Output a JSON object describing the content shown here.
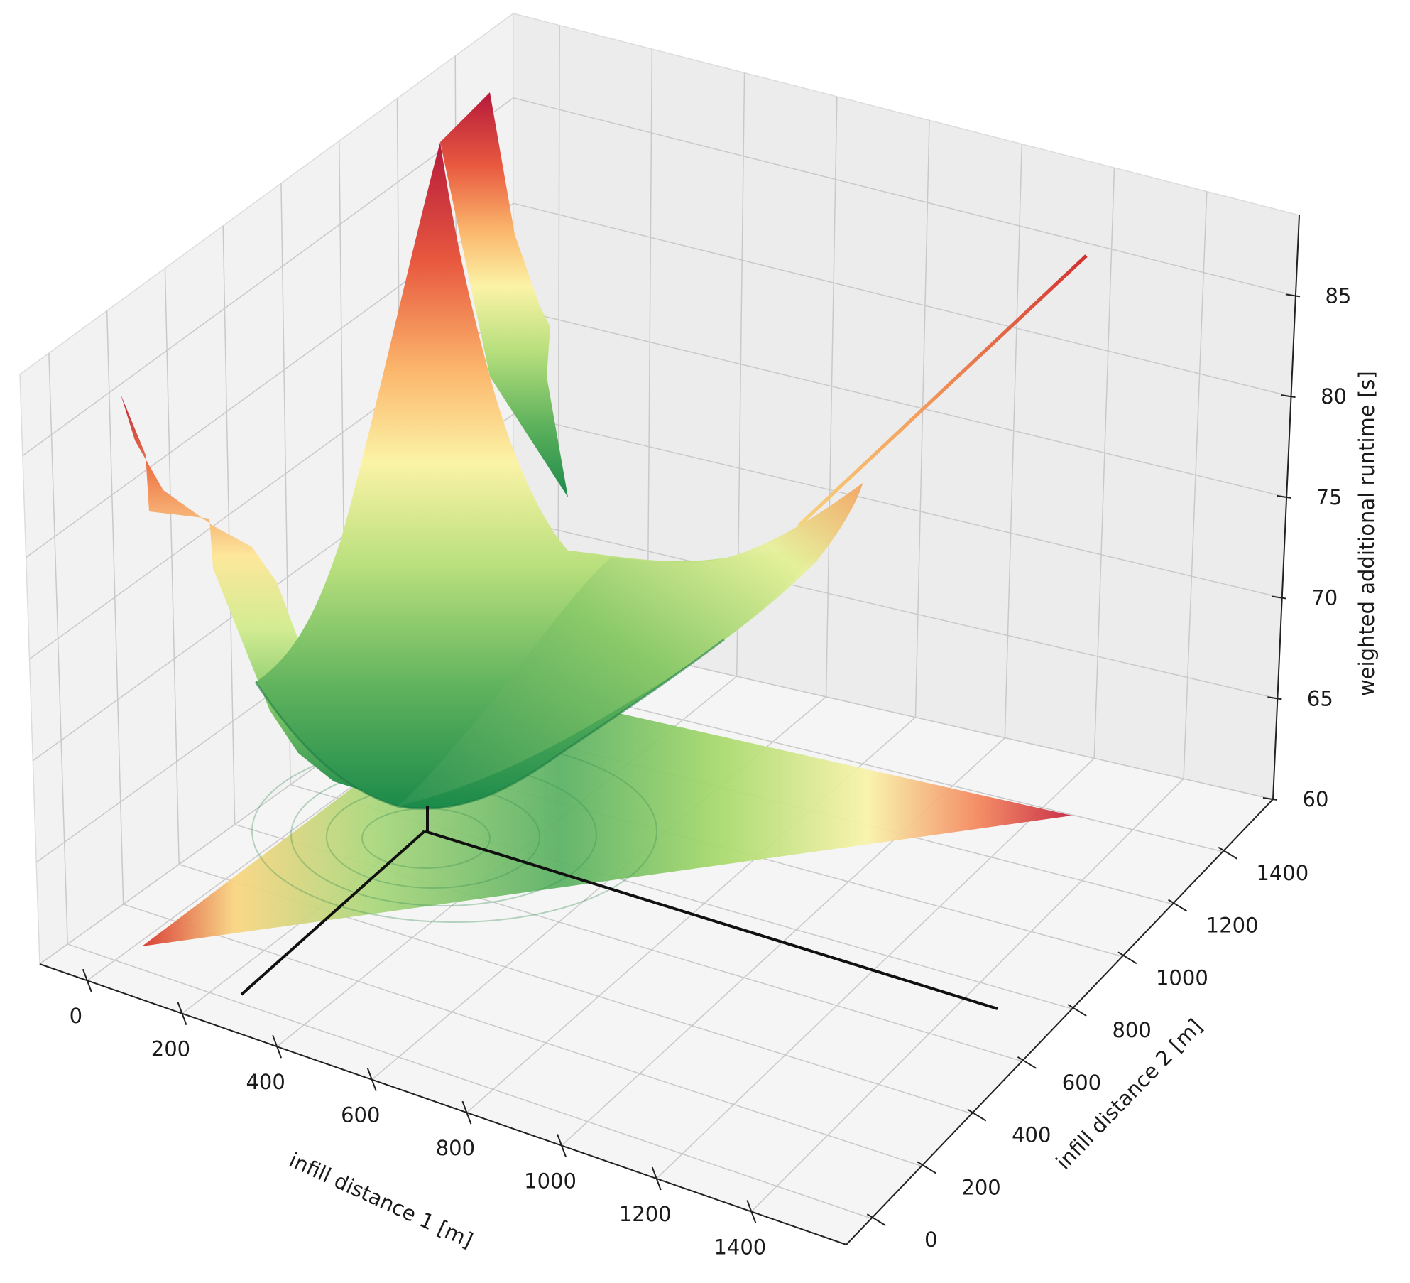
{
  "chart_data": {
    "type": "surface3d",
    "title": "",
    "xlabel": "infill distance 1 [m]",
    "ylabel": "infill distance 2 [m]",
    "zlabel": "weighted additional runtime [s]",
    "xlim": [
      -100,
      1600
    ],
    "ylim": [
      -100,
      1600
    ],
    "zlim": [
      60,
      89
    ],
    "x_ticks": [
      0,
      200,
      400,
      600,
      800,
      1000,
      1200,
      1400
    ],
    "y_ticks": [
      0,
      200,
      400,
      600,
      800,
      1000,
      1200,
      1400
    ],
    "z_ticks": [
      60,
      65,
      70,
      75,
      80,
      85
    ],
    "colormap": "RdYlGn_r",
    "domain": "infill distance 1 + infill distance 2 <= 1500",
    "surface_samples": [
      {
        "x": 0,
        "y": 1500,
        "z": 88.5
      },
      {
        "x": 0,
        "y": 1300,
        "z": 79.5
      },
      {
        "x": 0,
        "y": 1000,
        "z": 70.0
      },
      {
        "x": 0,
        "y": 600,
        "z": 66.0
      },
      {
        "x": 0,
        "y": 200,
        "z": 68.5
      },
      {
        "x": 0,
        "y": 0,
        "z": 79.0
      },
      {
        "x": 350,
        "y": 350,
        "z": 60.5
      },
      {
        "x": 500,
        "y": 500,
        "z": 62.0
      },
      {
        "x": 1000,
        "y": 0,
        "z": 72.0
      },
      {
        "x": 1500,
        "y": 0,
        "z": 86.5
      }
    ],
    "contour_projection": {
      "z": 60,
      "colormap": "RdYlGn_r"
    },
    "minimum_marker": {
      "x": 350,
      "y": 350,
      "z": 60
    },
    "grid": true,
    "legend": "none"
  }
}
